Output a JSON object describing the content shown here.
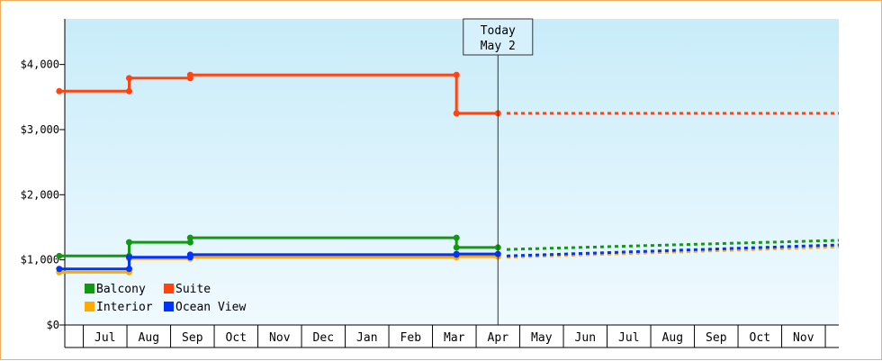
{
  "chart_data": {
    "type": "line",
    "title": "",
    "xlabel": "",
    "ylabel": "",
    "ylim": [
      0,
      4700
    ],
    "y_ticks": [
      {
        "value": 0,
        "label": "$0"
      },
      {
        "value": 1000,
        "label": "$1,000"
      },
      {
        "value": 2000,
        "label": "$2,000"
      },
      {
        "value": 3000,
        "label": "$3,000"
      },
      {
        "value": 4000,
        "label": "$4,000"
      }
    ],
    "x_months": [
      "",
      "Jul",
      "Aug",
      "Sep",
      "Oct",
      "Nov",
      "Dec",
      "Jan",
      "Feb",
      "Mar",
      "Apr",
      "May",
      "Jun",
      "Jul",
      "Aug",
      "Sep",
      "Oct",
      "Nov"
    ],
    "today_marker": {
      "line1": "Today",
      "line2": "May 2",
      "x": 10.0
    },
    "grid": false,
    "legend_position": "bottom-left",
    "series": [
      {
        "name": "Balcony",
        "color": "#119911",
        "x": [
          -0.05,
          1.55,
          1.55,
          2.95,
          2.95,
          9.05,
          9.05,
          10.0
        ],
        "values": [
          1060,
          1060,
          1270,
          1270,
          1340,
          1340,
          1190,
          1190
        ],
        "markers": [
          -0.05,
          1.55,
          2.95,
          9.05,
          10.0
        ],
        "forecast_x": [
          10.2,
          18.2
        ],
        "forecast_values": [
          1160,
          1300
        ]
      },
      {
        "name": "Suite",
        "color": "#ff4411",
        "x": [
          -0.05,
          1.55,
          1.55,
          2.95,
          2.95,
          9.05,
          9.05,
          10.0
        ],
        "values": [
          3590,
          3590,
          3790,
          3790,
          3840,
          3840,
          3250,
          3250
        ],
        "markers": [
          -0.05,
          1.55,
          2.95,
          9.05,
          10.0
        ],
        "forecast_x": [
          10.2,
          18.2
        ],
        "forecast_values": [
          3250,
          3250
        ]
      },
      {
        "name": "Interior",
        "color": "#ffaa00",
        "x": [
          -0.05,
          1.55,
          1.55,
          2.95,
          2.95,
          9.05,
          9.05,
          10.0
        ],
        "values": [
          810,
          810,
          1020,
          1020,
          1040,
          1040,
          1050,
          1050
        ],
        "markers": [
          -0.05,
          1.55,
          2.95,
          9.05,
          10.0
        ],
        "forecast_x": [
          10.2,
          18.2
        ],
        "forecast_values": [
          1040,
          1200
        ]
      },
      {
        "name": "Ocean View",
        "color": "#0033ff",
        "x": [
          -0.05,
          1.55,
          1.55,
          2.95,
          2.95,
          9.05,
          9.05,
          10.0
        ],
        "values": [
          860,
          860,
          1040,
          1040,
          1080,
          1080,
          1090,
          1090
        ],
        "markers": [
          -0.05,
          1.55,
          2.95,
          9.05,
          10.0
        ],
        "forecast_x": [
          10.2,
          18.2
        ],
        "forecast_values": [
          1060,
          1230
        ]
      }
    ]
  }
}
